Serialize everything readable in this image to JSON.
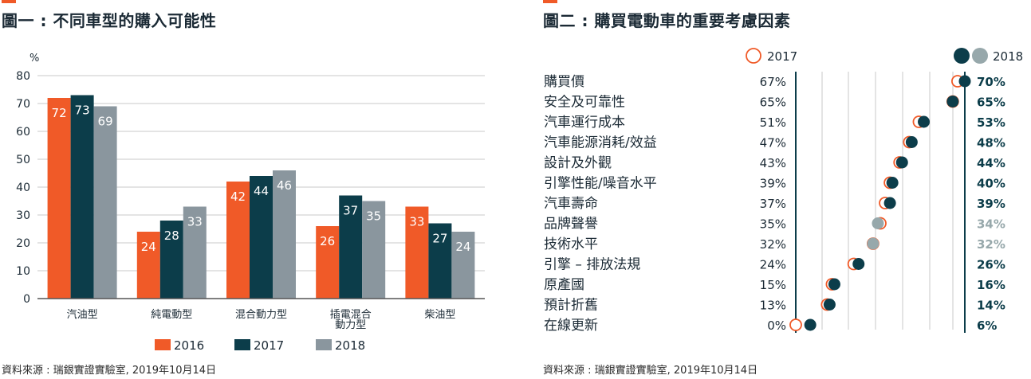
{
  "colors": {
    "accent": "#f05a28",
    "c2016": "#f05a28",
    "c2017": "#0c3d4a",
    "c2018": "#8a969e",
    "dot2018_gray": "#97a8ab",
    "grid": "#c8c8c8",
    "text_dark": "#1b2a35"
  },
  "chart_data": [
    {
      "type": "bar",
      "title": "圖一 : 不同車型的購入可能性",
      "ylabel": "%",
      "ylim": [
        0,
        80
      ],
      "yticks": [
        "0",
        "10",
        "20",
        "30",
        "40",
        "50",
        "60",
        "70",
        "80"
      ],
      "grid": true,
      "legend_position": "bottom",
      "categories": [
        "汽油型",
        "純電動型",
        "混合動力型",
        "插電混合\n動力型",
        "柴油型"
      ],
      "series": [
        {
          "name": "2016",
          "values": [
            72,
            24,
            42,
            26,
            33
          ]
        },
        {
          "name": "2017",
          "values": [
            73,
            28,
            44,
            37,
            27
          ]
        },
        {
          "name": "2018",
          "values": [
            69,
            33,
            46,
            35,
            24
          ]
        }
      ],
      "source": "資料來源 : 瑞銀實證實驗室, 2019年10月14日"
    },
    {
      "type": "scatter",
      "title": "圖二 : 購買電動車的重要考慮因素",
      "legend_position": "top",
      "series_names": [
        "2017",
        "2018"
      ],
      "factors": [
        {
          "label": "購買價",
          "v2017": 67,
          "v2018": 70,
          "l2017": "67%",
          "l2018": "70%",
          "muted": false
        },
        {
          "label": "安全及可靠性",
          "v2017": 65,
          "v2018": 65,
          "l2017": "65%",
          "l2018": "65%",
          "muted": false
        },
        {
          "label": "汽車運行成本",
          "v2017": 51,
          "v2018": 53,
          "l2017": "51%",
          "l2018": "53%",
          "muted": false
        },
        {
          "label": "汽車能源消耗/效益",
          "v2017": 47,
          "v2018": 48,
          "l2017": "47%",
          "l2018": "48%",
          "muted": false
        },
        {
          "label": "設計及外觀",
          "v2017": 43,
          "v2018": 44,
          "l2017": "43%",
          "l2018": "44%",
          "muted": false
        },
        {
          "label": "引擎性能/噪音水平",
          "v2017": 39,
          "v2018": 40,
          "l2017": "39%",
          "l2018": "40%",
          "muted": false
        },
        {
          "label": "汽車壽命",
          "v2017": 37,
          "v2018": 39,
          "l2017": "37%",
          "l2018": "39%",
          "muted": false
        },
        {
          "label": "品牌聲譽",
          "v2017": 35,
          "v2018": 34,
          "l2017": "35%",
          "l2018": "34%",
          "muted": true
        },
        {
          "label": "技術水平",
          "v2017": 32,
          "v2018": 32,
          "l2017": "32%",
          "l2018": "32%",
          "muted": true
        },
        {
          "label": "引擎 – 排放法規",
          "v2017": 24,
          "v2018": 26,
          "l2017": "24%",
          "l2018": "26%",
          "muted": false
        },
        {
          "label": "原產國",
          "v2017": 15,
          "v2018": 16,
          "l2017": "15%",
          "l2018": "16%",
          "muted": false
        },
        {
          "label": "預計折舊",
          "v2017": 13,
          "v2018": 14,
          "l2017": "13%",
          "l2018": "14%",
          "muted": false
        },
        {
          "label": "在線更新",
          "v2017": 0,
          "v2018": 6,
          "l2017": "0%",
          "l2018": "6%",
          "muted": false
        }
      ],
      "source": "資料來源 : 瑞銀實證實驗室, 2019年10月14日"
    }
  ]
}
